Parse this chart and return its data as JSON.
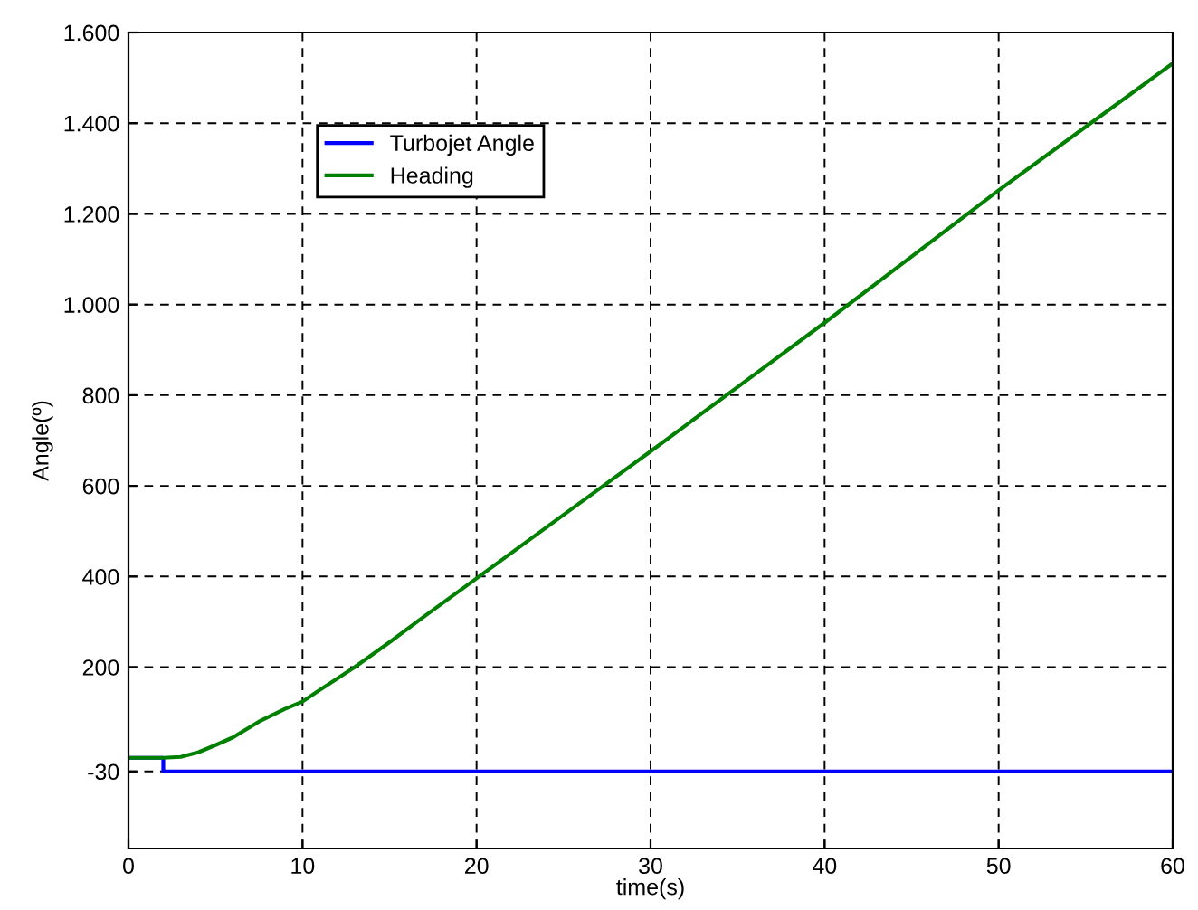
{
  "chart_data": {
    "type": "line",
    "xlabel": "time(s)",
    "ylabel": "Angle(º)",
    "series": [
      {
        "name": "Turbojet Angle",
        "color": "#0000ff",
        "type": "step",
        "x": [
          0,
          2,
          60
        ],
        "values": [
          0,
          -30,
          -30
        ]
      },
      {
        "name": "Heading",
        "color": "#008000",
        "x": [
          0,
          2,
          3,
          4,
          5,
          6,
          7.5,
          9,
          10,
          11,
          13,
          15,
          17,
          20,
          25,
          30,
          35,
          40,
          45,
          50,
          55,
          60
        ],
        "values": [
          0,
          0,
          2,
          12,
          28,
          45,
          80,
          108,
          124,
          150,
          200,
          255,
          312,
          396,
          536,
          676,
          818,
          960,
          1106,
          1252,
          1392,
          1532
        ]
      }
    ],
    "xlim": [
      0,
      60
    ],
    "xticks": [
      0,
      10,
      20,
      30,
      40,
      50,
      60
    ],
    "ylim": [
      -200,
      1600
    ],
    "yticks": [
      -30,
      {
        "value": 200,
        "label": "200"
      },
      {
        "value": 400,
        "label": "400"
      },
      {
        "value": 600,
        "label": "600"
      },
      {
        "value": 800,
        "label": "800"
      },
      {
        "value": 1000,
        "label": "1.000"
      },
      {
        "value": 1200,
        "label": "1.200"
      },
      {
        "value": 1400,
        "label": "1.400"
      },
      {
        "value": 1600,
        "label": "1.600"
      }
    ],
    "grid": true,
    "legend": "top left",
    "line_style": "solid"
  }
}
